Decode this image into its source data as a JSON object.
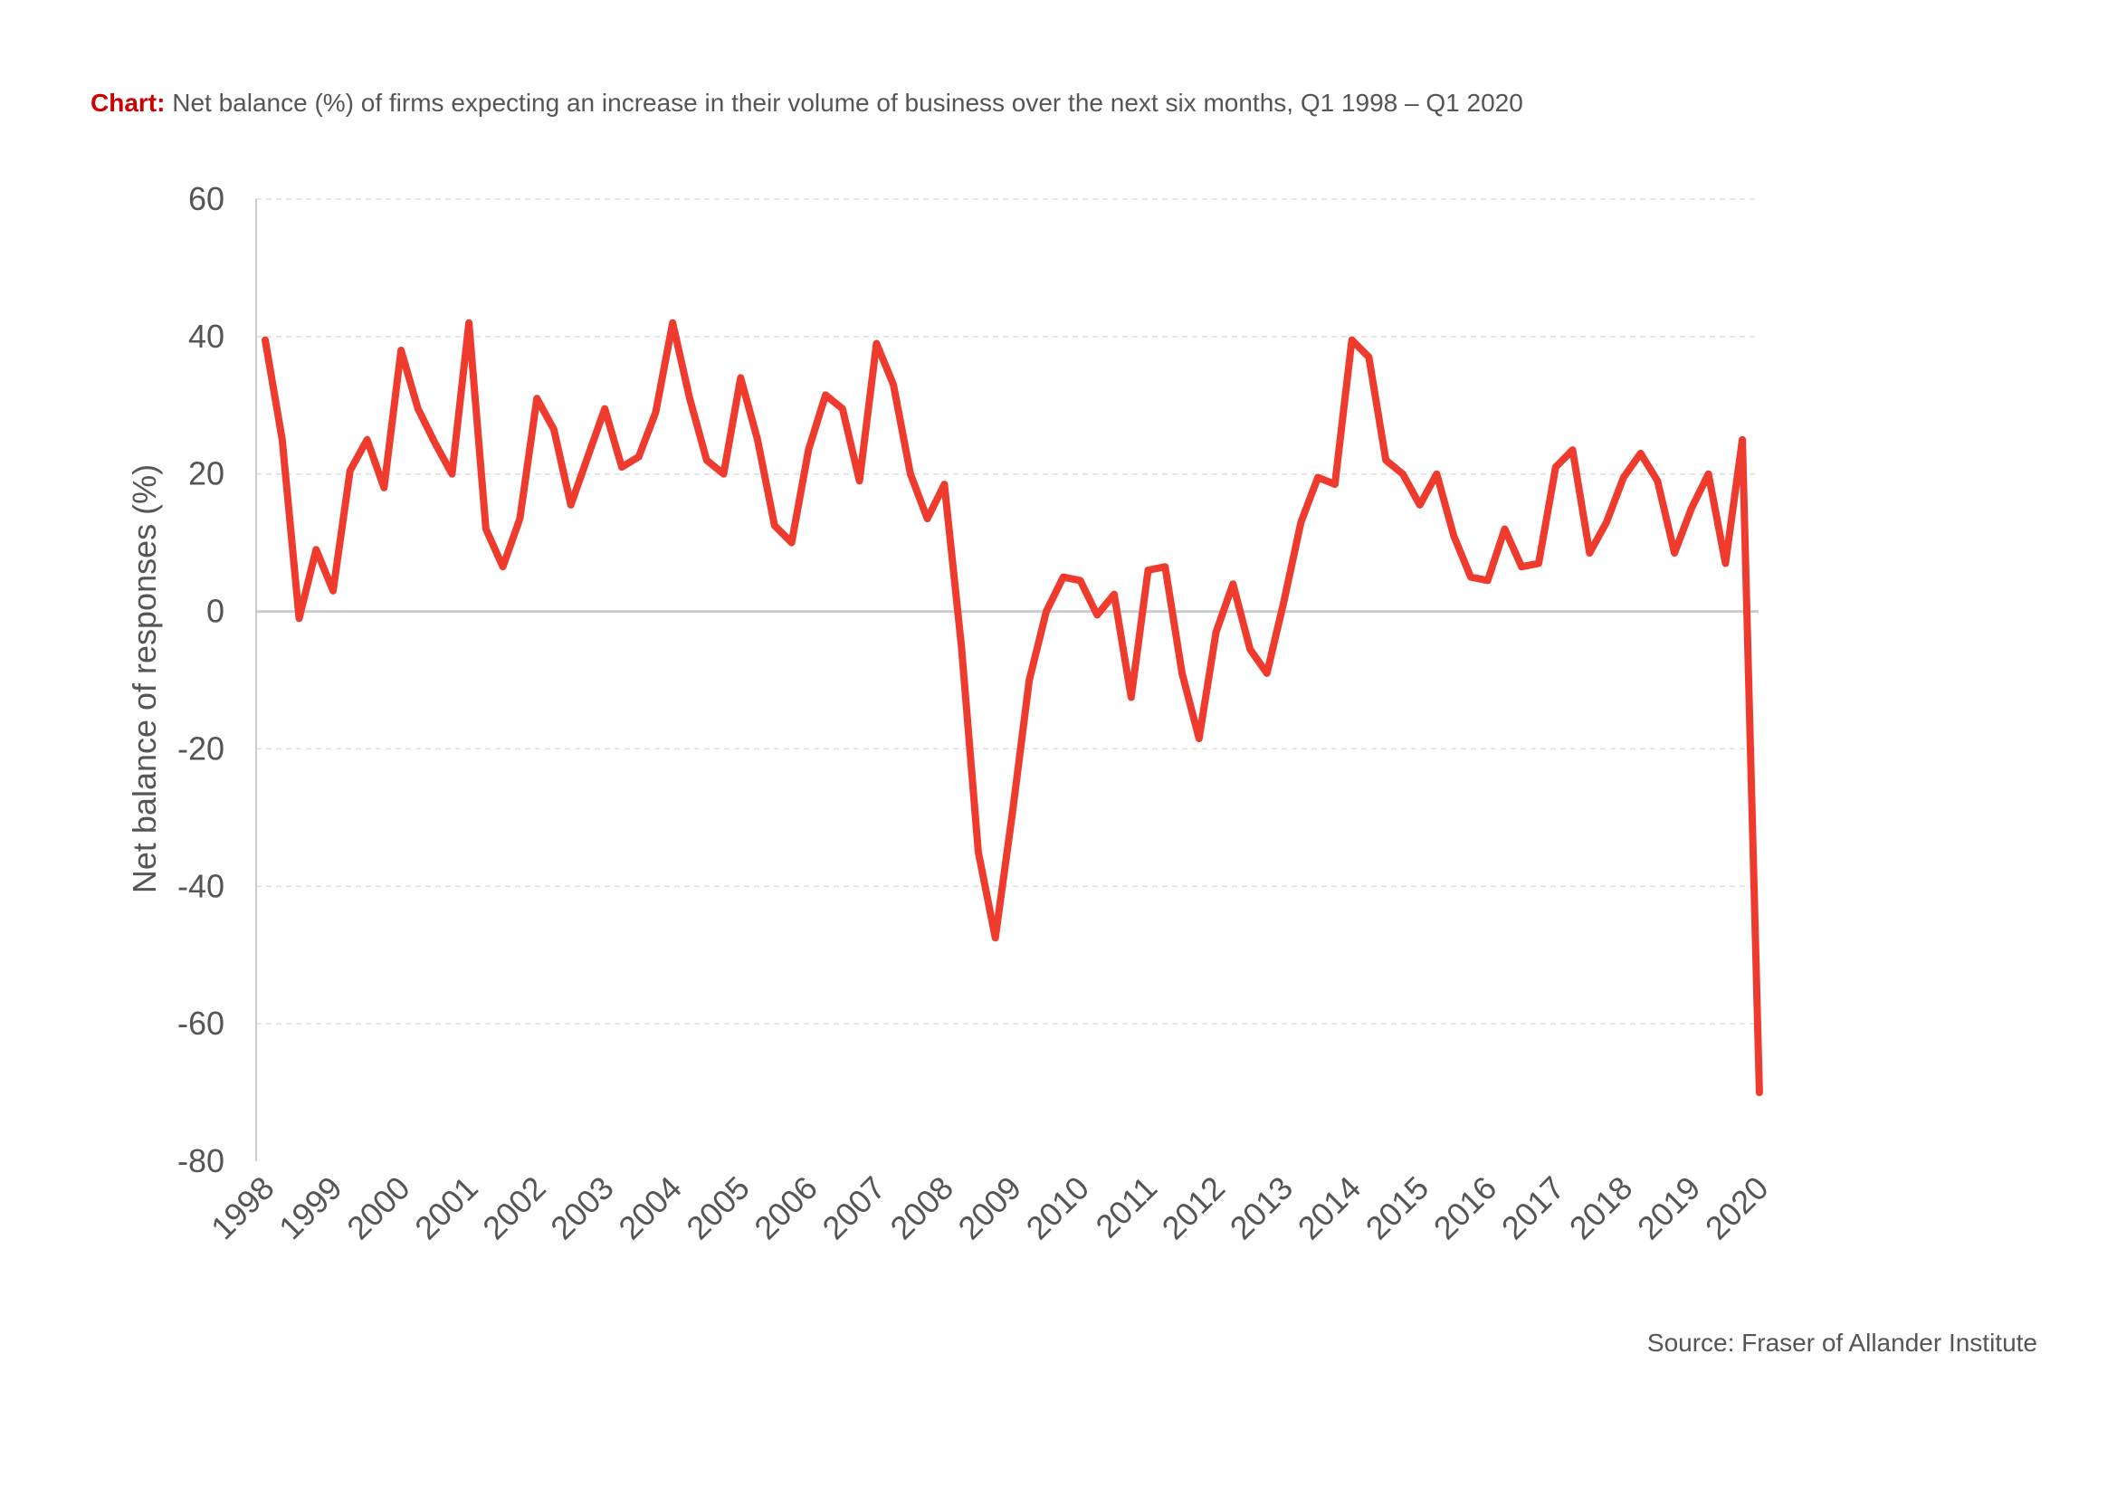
{
  "caption": {
    "lead": "Chart:",
    "text": "Net balance (%) of firms expecting an increase in their volume of business over the next six months, Q1 1998 – Q1 2020"
  },
  "source": "Source: Fraser of Allander Institute",
  "colors": {
    "line": "#ee3b2e",
    "grid": "#dddddd",
    "zero": "#cccccc",
    "axis": "#cccccc",
    "lead": "#cc0000"
  },
  "chart_data": {
    "type": "line",
    "title": "",
    "xlabel": "",
    "ylabel": "Net balance of responses (%)",
    "ylim": [
      -80,
      60
    ],
    "yticks": [
      60,
      40,
      20,
      0,
      -20,
      -40,
      -60,
      -80
    ],
    "xticks": [
      "1998",
      "1999",
      "2000",
      "2001",
      "2002",
      "2003",
      "2004",
      "2005",
      "2006",
      "2007",
      "2008",
      "2009",
      "2010",
      "2011",
      "2012",
      "2013",
      "2014",
      "2015",
      "2016",
      "2017",
      "2018",
      "2019",
      "2020"
    ],
    "grid": true,
    "series": [
      {
        "name": "Net balance (%)",
        "x_start": "Q1 1998",
        "x_end": "Q1 2020",
        "frequency": "quarterly",
        "values": [
          39.5,
          25,
          -1,
          9,
          3,
          20.5,
          25,
          18,
          38,
          29.5,
          24.5,
          20,
          42,
          12,
          6.5,
          13.5,
          31,
          26.5,
          15.5,
          22.5,
          29.5,
          21,
          22.5,
          29,
          42,
          31,
          22,
          20,
          34,
          25,
          12.5,
          10,
          23.5,
          31.5,
          29.5,
          19,
          39,
          33,
          20,
          13.5,
          18.5,
          -5,
          -35,
          -47.5,
          -29.5,
          -10,
          0,
          5,
          4.5,
          -0.5,
          2.5,
          -12.5,
          6,
          6.5,
          -9,
          -18.5,
          -3,
          4,
          -5.5,
          -9,
          1.5,
          13,
          19.5,
          18.5,
          39.5,
          37,
          22,
          20,
          15.5,
          20,
          11,
          5,
          4.5,
          12,
          6.5,
          7,
          21,
          23.5,
          8.5,
          13,
          19.5,
          23,
          19,
          8.5,
          15,
          20,
          7,
          25,
          -70
        ]
      }
    ]
  }
}
